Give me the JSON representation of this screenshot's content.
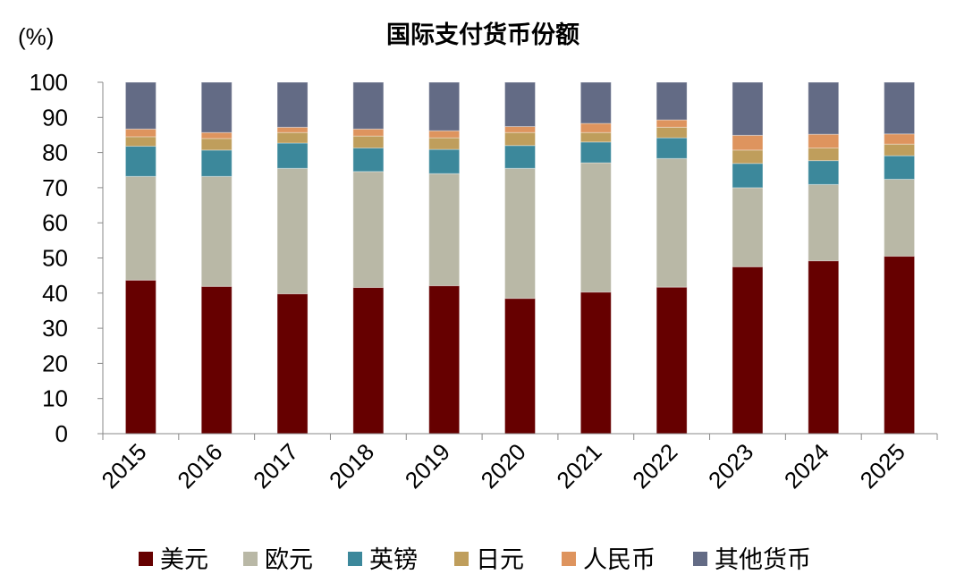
{
  "chart_data": {
    "type": "bar",
    "stacked": true,
    "title": "国际支付货币份额",
    "ylabel": "(%)",
    "xlabel": "",
    "ylim": [
      0,
      100
    ],
    "yticks": [
      "0",
      "10",
      "20",
      "30",
      "40",
      "50",
      "60",
      "70",
      "80",
      "90",
      "100"
    ],
    "grid": false,
    "legend_position": "bottom",
    "categories": [
      "2015",
      "2016",
      "2017",
      "2018",
      "2019",
      "2020",
      "2021",
      "2022",
      "2023",
      "2024",
      "2025"
    ],
    "series": [
      {
        "name": "美元",
        "color": "#660000",
        "values": [
          43.7,
          41.9,
          39.8,
          41.6,
          42.1,
          38.5,
          40.3,
          41.7,
          47.5,
          49.2,
          50.5
        ]
      },
      {
        "name": "欧元",
        "color": "#b9b8a6",
        "values": [
          29.5,
          31.3,
          35.7,
          33.0,
          31.9,
          37.0,
          36.8,
          36.6,
          22.5,
          21.7,
          21.9
        ]
      },
      {
        "name": "英镑",
        "color": "#3c889b",
        "values": [
          8.6,
          7.5,
          7.2,
          6.7,
          6.9,
          6.5,
          5.9,
          5.9,
          6.9,
          6.8,
          6.7
        ]
      },
      {
        "name": "日元",
        "color": "#bf9e5c",
        "values": [
          2.7,
          3.3,
          3.0,
          3.4,
          3.3,
          3.7,
          2.7,
          3.0,
          3.8,
          3.6,
          3.3
        ]
      },
      {
        "name": "人民币",
        "color": "#de945e",
        "values": [
          2.2,
          1.7,
          1.5,
          2.0,
          2.0,
          1.7,
          2.6,
          2.1,
          4.2,
          3.9,
          2.9
        ]
      },
      {
        "name": "其他货币",
        "color": "#636b85",
        "values": [
          13.3,
          14.3,
          12.8,
          13.3,
          13.8,
          12.6,
          11.7,
          10.7,
          15.1,
          14.8,
          14.7
        ]
      }
    ]
  }
}
